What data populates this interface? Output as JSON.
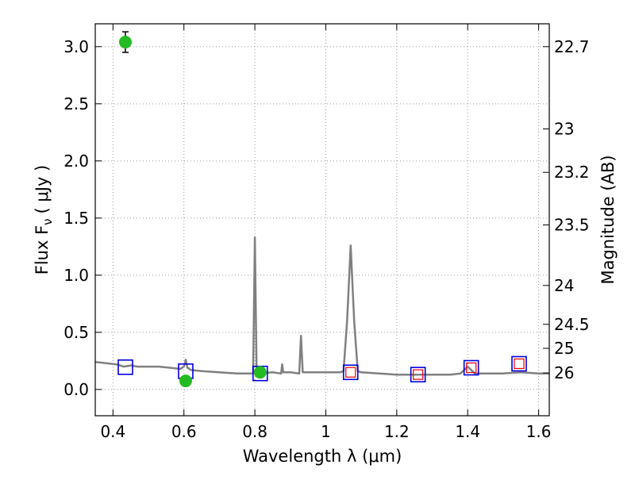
{
  "chart_data": {
    "type": "scatter",
    "title": "",
    "xlabel": "Wavelength  λ (μm)",
    "ylabel": "Flux  F",
    "ylabel_subscript": "ν",
    "ylabel_unit": "( μJy )",
    "y2label": "Magnitude (AB)",
    "xlim": [
      0.35,
      1.63
    ],
    "ylim": [
      -0.23,
      3.2
    ],
    "grid": true,
    "x_ticks": [
      0.4,
      0.6,
      0.8,
      1.0,
      1.2,
      1.4,
      1.6
    ],
    "x_tick_labels": [
      "0.4",
      "0.6",
      "0.8",
      "1",
      "1.2",
      "1.4",
      "1.6"
    ],
    "y_ticks": [
      0.0,
      0.5,
      1.0,
      1.5,
      2.0,
      2.5,
      3.0
    ],
    "y_tick_labels": [
      "0.0",
      "0.5",
      "1.0",
      "1.5",
      "2.0",
      "2.5",
      "3.0"
    ],
    "y2_ticks": [
      {
        "label": "22.7",
        "flux": 3.0
      },
      {
        "label": "23",
        "flux": 2.28
      },
      {
        "label": "23.2",
        "flux": 1.9
      },
      {
        "label": "23.5",
        "flux": 1.44
      },
      {
        "label": "24",
        "flux": 0.91
      },
      {
        "label": "24.5",
        "flux": 0.57
      },
      {
        "label": "25",
        "flux": 0.36
      },
      {
        "label": "26",
        "flux": 0.145
      }
    ],
    "colors": {
      "spectrum": "#808080",
      "observed": "#22bb22",
      "model_box": "#0000dd",
      "model_inner": "#ee0000",
      "grid": "#999999"
    },
    "series": [
      {
        "kind": "spectrum",
        "x": [
          0.35,
          0.38,
          0.41,
          0.43,
          0.45,
          0.47,
          0.5,
          0.53,
          0.56,
          0.59,
          0.6,
          0.605,
          0.61,
          0.62,
          0.65,
          0.7,
          0.75,
          0.795,
          0.8,
          0.805,
          0.81,
          0.85,
          0.874,
          0.877,
          0.88,
          0.9,
          0.925,
          0.93,
          0.935,
          0.95,
          1.0,
          1.04,
          1.05,
          1.06,
          1.07,
          1.08,
          1.09,
          1.1,
          1.15,
          1.2,
          1.25,
          1.3,
          1.35,
          1.38,
          1.4,
          1.42,
          1.45,
          1.5,
          1.55,
          1.6,
          1.63
        ],
        "y": [
          0.24,
          0.23,
          0.22,
          0.2,
          0.21,
          0.2,
          0.2,
          0.2,
          0.19,
          0.18,
          0.2,
          0.26,
          0.19,
          0.17,
          0.16,
          0.15,
          0.14,
          0.14,
          1.33,
          0.14,
          0.14,
          0.15,
          0.14,
          0.22,
          0.15,
          0.15,
          0.14,
          0.47,
          0.15,
          0.15,
          0.15,
          0.15,
          0.16,
          0.6,
          1.26,
          0.6,
          0.16,
          0.15,
          0.14,
          0.13,
          0.13,
          0.13,
          0.13,
          0.14,
          0.2,
          0.14,
          0.14,
          0.14,
          0.15,
          0.14,
          0.14
        ]
      },
      {
        "kind": "observed",
        "x": [
          0.435,
          0.605,
          0.815
        ],
        "y": [
          3.04,
          0.075,
          0.15
        ],
        "yerr": [
          0.09,
          0.025,
          0.025
        ]
      },
      {
        "kind": "model_box",
        "x": [
          0.435,
          0.605,
          0.815,
          1.07,
          1.26,
          1.41,
          1.545
        ],
        "y": [
          0.195,
          0.16,
          0.14,
          0.15,
          0.13,
          0.19,
          0.225
        ]
      },
      {
        "kind": "model_inner",
        "x": [
          1.07,
          1.26,
          1.41,
          1.545
        ],
        "y": [
          0.15,
          0.13,
          0.19,
          0.225
        ]
      }
    ]
  }
}
